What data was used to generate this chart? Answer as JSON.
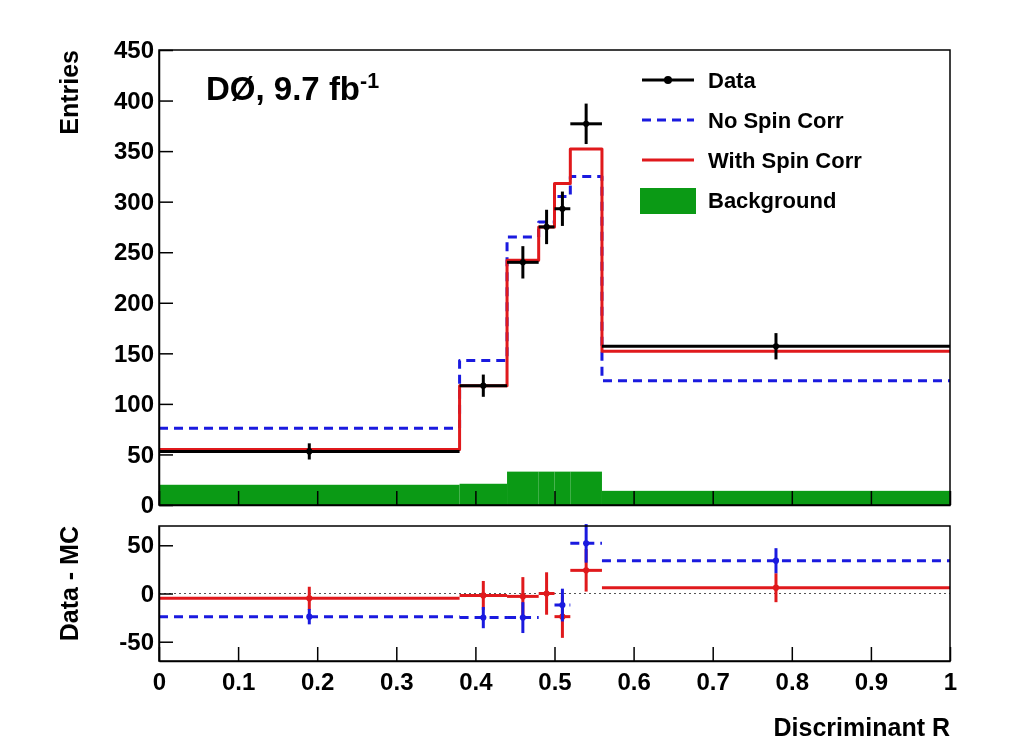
{
  "chart_data": [
    {
      "type": "histogram",
      "ylabel": "Entries",
      "xlim": [
        0,
        1
      ],
      "xticks": [
        0,
        0.1,
        0.2,
        0.3,
        0.4,
        0.5,
        0.6,
        0.7,
        0.8,
        0.9,
        1
      ],
      "ylim": [
        0,
        450
      ],
      "yticks": [
        0,
        50,
        100,
        150,
        200,
        250,
        300,
        350,
        400,
        450
      ],
      "tick_labels": "y",
      "legend": "top right",
      "grid": false,
      "annotations": [
        "DØ, 9.7 fb$^{-1}$"
      ],
      "series": [
        {
          "name": "Data",
          "type": "scatter",
          "marker": "circle",
          "color": "#000000",
          "x": [
            0.19,
            0.41,
            0.46,
            0.49,
            0.51,
            0.54,
            0.78
          ],
          "values": [
            53,
            118,
            240,
            275,
            293,
            377,
            157
          ],
          "errors": [
            8,
            11,
            16,
            17,
            17,
            20,
            13
          ],
          "xerrors": [
            0.19,
            0.03,
            0.02,
            0.01,
            0.01,
            0.02,
            0.22
          ]
        },
        {
          "name": "No Spin Corr",
          "color": "#1a1adf",
          "line_style": "dashed",
          "bins": [
            0,
            0.38,
            0.44,
            0.48,
            0.5,
            0.52,
            0.56,
            1
          ],
          "values": [
            76,
            143,
            265,
            280,
            305,
            325,
            123
          ]
        },
        {
          "name": "With Spin Corr",
          "color": "#e0191c",
          "line_style": "solid",
          "bins": [
            0,
            0.38,
            0.44,
            0.48,
            0.5,
            0.52,
            0.56,
            1
          ],
          "values": [
            55,
            118,
            242,
            275,
            318,
            352,
            152
          ]
        },
        {
          "name": "Background",
          "color": "#0b9a15",
          "bins": [
            0,
            0.38,
            0.44,
            0.48,
            0.5,
            0.52,
            0.56,
            1
          ],
          "values": [
            20,
            21,
            33,
            33,
            33,
            33,
            14
          ]
        }
      ]
    },
    {
      "type": "scatter",
      "xlabel": "Discriminant R",
      "ylabel": "Data - MC",
      "xlim": [
        0,
        1
      ],
      "xticks": [
        0,
        0.1,
        0.2,
        0.3,
        0.4,
        0.5,
        0.6,
        0.7,
        0.8,
        0.9,
        1
      ],
      "ylim": [
        -70,
        70
      ],
      "yticks": [
        -50,
        0,
        50
      ],
      "grid": false,
      "marker": "circle",
      "ref_lines": [
        {
          "axis": "y",
          "value": 0,
          "color": "#555555",
          "line_style": "dotted"
        }
      ],
      "series": [
        {
          "color": "#e0191c",
          "line_style": "solid",
          "x": [
            0.19,
            0.41,
            0.46,
            0.49,
            0.51,
            0.54,
            0.78
          ],
          "values": [
            -5,
            -2,
            -3,
            0,
            -24,
            24,
            6
          ],
          "errors": [
            12,
            15,
            20,
            22,
            22,
            22,
            15
          ],
          "xerrors": [
            0.19,
            0.03,
            0.02,
            0.01,
            0.01,
            0.02,
            0.22
          ]
        },
        {
          "color": "#1a1adf",
          "line_style": "dashed",
          "x": [
            0.19,
            0.41,
            0.46,
            0.49,
            0.51,
            0.54,
            0.78
          ],
          "values": [
            -24,
            -25,
            -25,
            null,
            -12,
            52,
            34
          ],
          "errors": [
            8,
            11,
            16,
            null,
            17,
            20,
            13
          ],
          "xerrors": [
            0.19,
            0.03,
            0.02,
            null,
            0.01,
            0.02,
            0.22
          ]
        }
      ]
    }
  ]
}
